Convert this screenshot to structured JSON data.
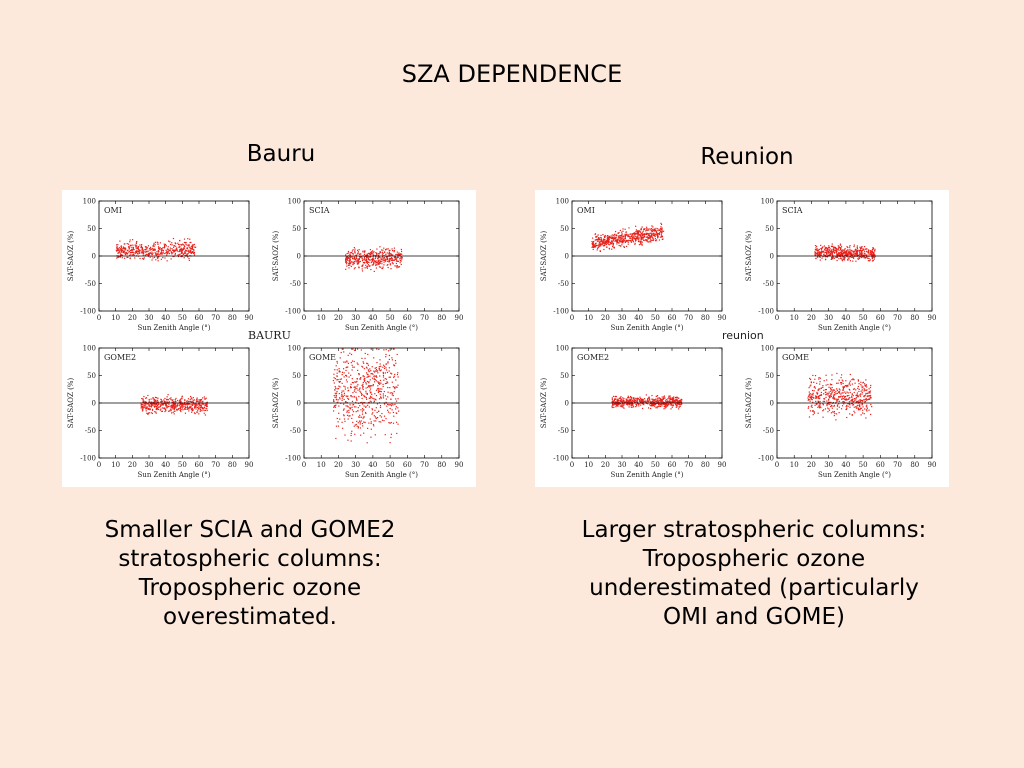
{
  "slide": {
    "title": "SZA DEPENDENCE",
    "left_site": "Bauru",
    "right_site": "Reunion",
    "left_caption": "Smaller SCIA and GOME2\nstratospheric columns:\nTropospheric ozone\noverestimated.",
    "right_caption": "Larger stratospheric columns:\nTropospheric ozone\nunderestimated (particularly\nOMI and GOME)"
  },
  "style": {
    "background": "#fce9dc",
    "point_color": "#e8201a",
    "axis_color": "#000000"
  },
  "chart_data": [
    {
      "figure": "left",
      "figure_label": "BAURU",
      "panel": "OMI",
      "type": "scatter",
      "xlabel": "Sun Zenith Angle (°)",
      "ylabel": "SAT-SAOZ (%)",
      "xlim": [
        0,
        90
      ],
      "ylim": [
        -100,
        100
      ],
      "xticks": [
        0,
        10,
        20,
        30,
        40,
        50,
        60,
        70,
        80,
        90
      ],
      "yticks": [
        -100,
        -50,
        0,
        50,
        100
      ],
      "reference_line_y": 0,
      "point_cloud": {
        "x_range": [
          10,
          58
        ],
        "y_center": 10,
        "y_spread": 15,
        "y_trend_per_deg": 0.1,
        "n": 500
      }
    },
    {
      "figure": "left",
      "figure_label": "BAURU",
      "panel": "SCIA",
      "type": "scatter",
      "xlabel": "Sun Zenith Angle (°)",
      "ylabel": "SAT-SAOZ (%)",
      "xlim": [
        0,
        90
      ],
      "ylim": [
        -100,
        100
      ],
      "xticks": [
        0,
        10,
        20,
        30,
        40,
        50,
        60,
        70,
        80,
        90
      ],
      "yticks": [
        -100,
        -50,
        0,
        50,
        100
      ],
      "reference_line_y": 0,
      "point_cloud": {
        "x_range": [
          24,
          57
        ],
        "y_center": -5,
        "y_spread": 17,
        "y_trend_per_deg": 0,
        "n": 450
      }
    },
    {
      "figure": "left",
      "figure_label": "BAURU",
      "panel": "GOME2",
      "type": "scatter",
      "xlabel": "Sun Zenith Angle (°)",
      "ylabel": "SAT-SAOZ (%)",
      "xlim": [
        0,
        90
      ],
      "ylim": [
        -100,
        100
      ],
      "xticks": [
        0,
        10,
        20,
        30,
        40,
        50,
        60,
        70,
        80,
        90
      ],
      "yticks": [
        -100,
        -50,
        0,
        50,
        100
      ],
      "reference_line_y": 0,
      "point_cloud": {
        "x_range": [
          25,
          65
        ],
        "y_center": -4,
        "y_spread": 14,
        "y_trend_per_deg": 0,
        "n": 500
      }
    },
    {
      "figure": "left",
      "figure_label": "BAURU",
      "panel": "GOME",
      "type": "scatter",
      "xlabel": "Sun Zenith Angle (°)",
      "ylabel": "SAT-SAOZ (%)",
      "xlim": [
        0,
        90
      ],
      "ylim": [
        -100,
        100
      ],
      "xticks": [
        0,
        10,
        20,
        30,
        40,
        50,
        60,
        70,
        80,
        90
      ],
      "yticks": [
        -100,
        -50,
        0,
        50,
        100
      ],
      "reference_line_y": 0,
      "point_cloud": {
        "x_range": [
          17,
          55
        ],
        "y_center": 20,
        "y_spread": 75,
        "y_trend_per_deg": 0,
        "n": 600
      }
    },
    {
      "figure": "right",
      "figure_label": "reunion",
      "panel": "OMI",
      "type": "scatter",
      "xlabel": "Sun Zenith Angle (°)",
      "ylabel": "SAT-SAOZ (%)",
      "xlim": [
        0,
        90
      ],
      "ylim": [
        -100,
        100
      ],
      "xticks": [
        0,
        10,
        20,
        30,
        40,
        50,
        60,
        70,
        80,
        90
      ],
      "yticks": [
        -100,
        -50,
        0,
        50,
        100
      ],
      "reference_line_y": 0,
      "point_cloud": {
        "x_range": [
          12,
          55
        ],
        "y_center": 33,
        "y_spread": 14,
        "y_trend_per_deg": 0.45,
        "n": 600
      }
    },
    {
      "figure": "right",
      "figure_label": "reunion",
      "panel": "SCIA",
      "type": "scatter",
      "xlabel": "Sun Zenith Angle (°)",
      "ylabel": "SAT-SAOZ (%)",
      "xlim": [
        0,
        90
      ],
      "ylim": [
        -100,
        100
      ],
      "xticks": [
        0,
        10,
        20,
        30,
        40,
        50,
        60,
        70,
        80,
        90
      ],
      "yticks": [
        -100,
        -50,
        0,
        50,
        100
      ],
      "reference_line_y": 0,
      "point_cloud": {
        "x_range": [
          22,
          57
        ],
        "y_center": 5,
        "y_spread": 12,
        "y_trend_per_deg": -0.05,
        "n": 500
      }
    },
    {
      "figure": "right",
      "figure_label": "reunion",
      "panel": "GOME2",
      "type": "scatter",
      "xlabel": "Sun Zenith Angle (°)",
      "ylabel": "SAT-SAOZ (%)",
      "xlim": [
        0,
        90
      ],
      "ylim": [
        -100,
        100
      ],
      "xticks": [
        0,
        10,
        20,
        30,
        40,
        50,
        60,
        70,
        80,
        90
      ],
      "yticks": [
        -100,
        -50,
        0,
        50,
        100
      ],
      "reference_line_y": 0,
      "point_cloud": {
        "x_range": [
          24,
          66
        ],
        "y_center": 2,
        "y_spread": 10,
        "y_trend_per_deg": 0,
        "n": 550
      }
    },
    {
      "figure": "right",
      "figure_label": "reunion",
      "panel": "GOME",
      "type": "scatter",
      "xlabel": "Sun Zenith Angle (°)",
      "ylabel": "SAT-SAOZ (%)",
      "xlim": [
        0,
        90
      ],
      "ylim": [
        -100,
        100
      ],
      "xticks": [
        0,
        10,
        20,
        30,
        40,
        50,
        60,
        70,
        80,
        90
      ],
      "yticks": [
        -100,
        -50,
        0,
        50,
        100
      ],
      "reference_line_y": 0,
      "point_cloud": {
        "x_range": [
          18,
          55
        ],
        "y_center": 12,
        "y_spread": 30,
        "y_trend_per_deg": 0,
        "n": 500
      }
    }
  ]
}
